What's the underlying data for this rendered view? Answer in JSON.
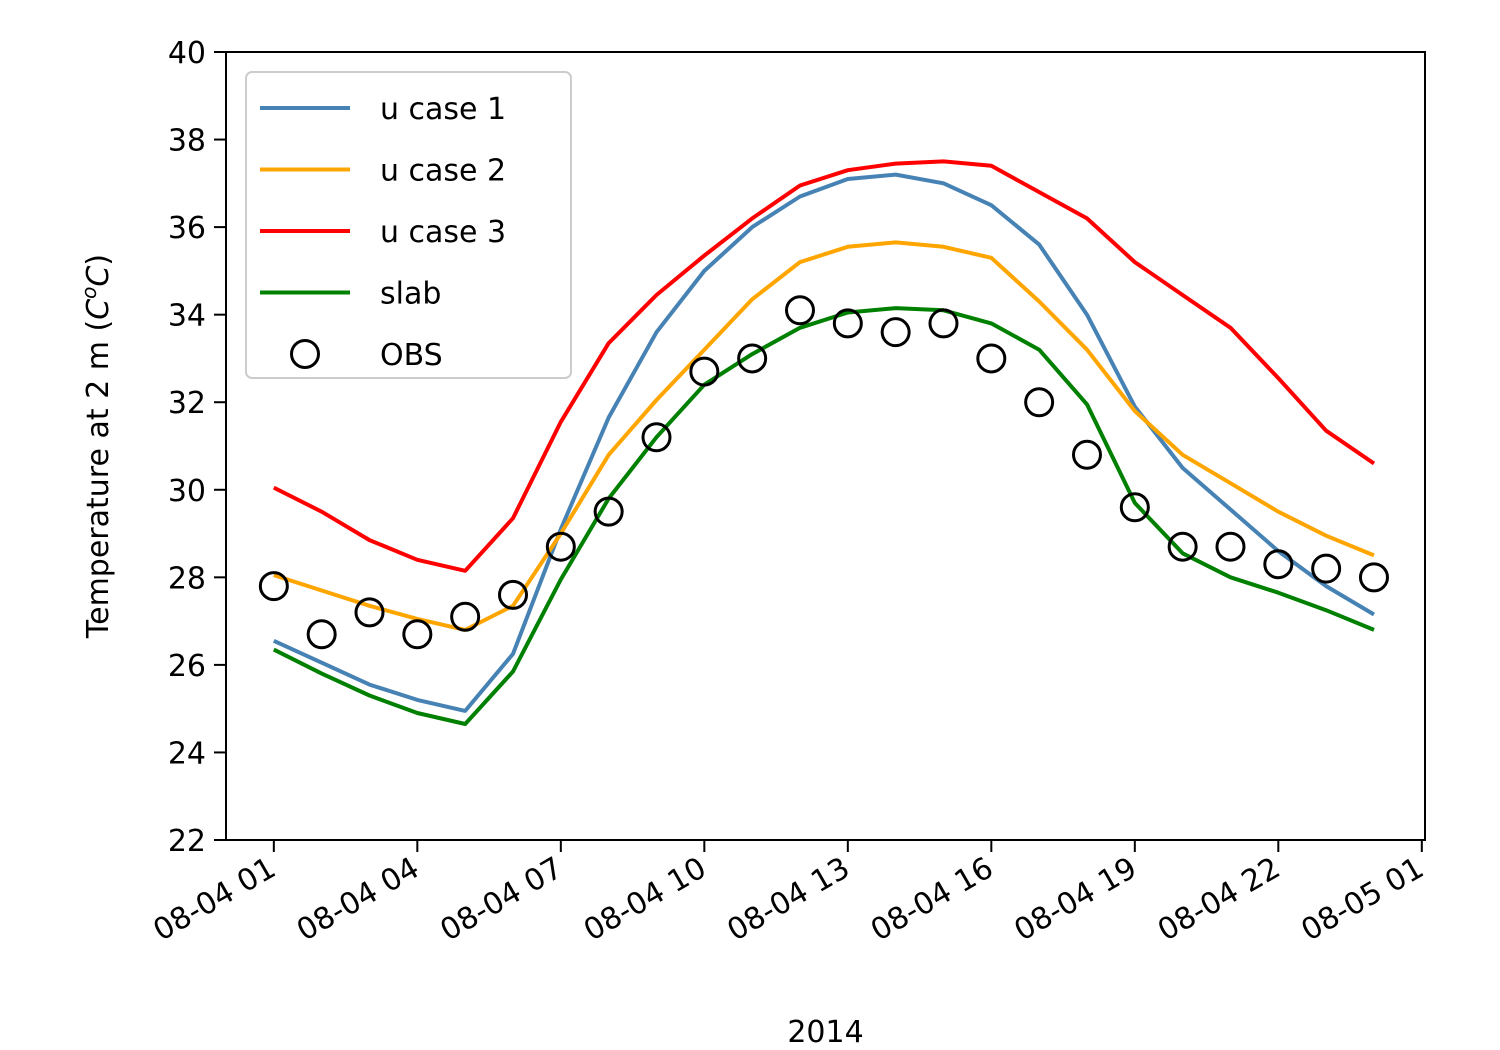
{
  "chart_data": {
    "type": "line",
    "xlabel": "2014",
    "ylabel": "Temperature at 2 m (",
    "ylabel_unit": "C",
    "ylabel_sup": "o",
    "ylabel_unit2": "C",
    "ylabel_close": ")",
    "ylim": [
      22,
      40
    ],
    "yticks": [
      22,
      24,
      26,
      28,
      30,
      32,
      34,
      36,
      38,
      40
    ],
    "xlim": [
      "2014-08-04 00:00",
      "2014-08-05 01:04"
    ],
    "xticks": [
      {
        "t": "2014-08-04 01:00",
        "label": "08-04 01"
      },
      {
        "t": "2014-08-04 04:00",
        "label": "08-04 04"
      },
      {
        "t": "2014-08-04 07:00",
        "label": "08-04 07"
      },
      {
        "t": "2014-08-04 10:00",
        "label": "08-04 10"
      },
      {
        "t": "2014-08-04 13:00",
        "label": "08-04 13"
      },
      {
        "t": "2014-08-04 16:00",
        "label": "08-04 16"
      },
      {
        "t": "2014-08-04 19:00",
        "label": "08-04 19"
      },
      {
        "t": "2014-08-04 22:00",
        "label": "08-04 22"
      },
      {
        "t": "2014-08-05 01:00",
        "label": "08-05 01"
      }
    ],
    "x": [
      "2014-08-04 01:00",
      "2014-08-04 02:00",
      "2014-08-04 03:00",
      "2014-08-04 04:00",
      "2014-08-04 05:00",
      "2014-08-04 06:00",
      "2014-08-04 07:00",
      "2014-08-04 08:00",
      "2014-08-04 09:00",
      "2014-08-04 10:00",
      "2014-08-04 11:00",
      "2014-08-04 12:00",
      "2014-08-04 13:00",
      "2014-08-04 14:00",
      "2014-08-04 15:00",
      "2014-08-04 16:00",
      "2014-08-04 17:00",
      "2014-08-04 18:00",
      "2014-08-04 19:00",
      "2014-08-04 20:00",
      "2014-08-04 21:00",
      "2014-08-04 22:00",
      "2014-08-04 23:00",
      "2014-08-05 00:00"
    ],
    "series": [
      {
        "name": "u case 1",
        "color": "#4682b4",
        "style": "line",
        "values": [
          26.55,
          26.05,
          25.55,
          25.2,
          24.95,
          26.25,
          29.1,
          31.65,
          33.6,
          35.0,
          36.0,
          36.7,
          37.1,
          37.2,
          37.0,
          36.5,
          35.6,
          34.0,
          31.9,
          30.5,
          29.55,
          28.6,
          27.8,
          27.15
        ]
      },
      {
        "name": "u case 2",
        "color": "#ffa500",
        "style": "line",
        "values": [
          28.05,
          27.7,
          27.35,
          27.05,
          26.8,
          27.35,
          29.0,
          30.8,
          32.05,
          33.2,
          34.35,
          35.2,
          35.55,
          35.65,
          35.55,
          35.3,
          34.3,
          33.2,
          31.8,
          30.8,
          30.15,
          29.5,
          28.95,
          28.5
        ]
      },
      {
        "name": "u case 3",
        "color": "#ff0000",
        "style": "line",
        "values": [
          30.05,
          29.5,
          28.85,
          28.4,
          28.15,
          29.35,
          31.55,
          33.35,
          34.45,
          35.35,
          36.2,
          36.95,
          37.3,
          37.45,
          37.5,
          37.4,
          36.8,
          36.2,
          35.2,
          34.45,
          33.7,
          32.55,
          31.35,
          30.6
        ]
      },
      {
        "name": "slab",
        "color": "#008000",
        "style": "line",
        "values": [
          26.35,
          25.8,
          25.3,
          24.9,
          24.65,
          25.85,
          27.95,
          29.8,
          31.2,
          32.4,
          33.1,
          33.7,
          34.05,
          34.15,
          34.1,
          33.8,
          33.2,
          31.95,
          29.7,
          28.55,
          28.0,
          27.65,
          27.25,
          26.8
        ]
      },
      {
        "name": "OBS",
        "color": "#000000",
        "style": "marker",
        "values": [
          27.8,
          26.7,
          27.2,
          26.7,
          27.1,
          27.6,
          28.7,
          29.5,
          31.2,
          32.7,
          33.0,
          34.1,
          33.8,
          33.6,
          33.8,
          33.0,
          32.0,
          30.8,
          29.6,
          28.7,
          28.7,
          28.3,
          28.2,
          28.0
        ]
      }
    ],
    "legend_position": "upper-left",
    "grid": false
  }
}
